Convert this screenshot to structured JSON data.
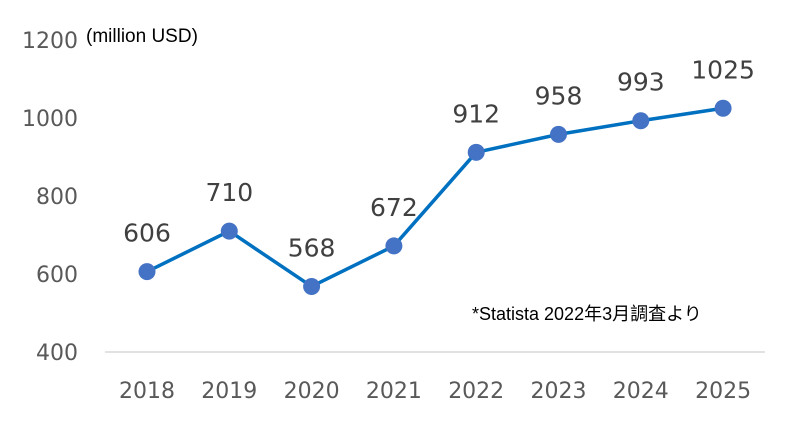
{
  "chart_data": {
    "type": "line",
    "title": "",
    "xlabel": "",
    "ylabel": "",
    "unit_label": "(million USD)",
    "note": "*Statista  2022年3月調査より",
    "categories": [
      "2018",
      "2019",
      "2020",
      "2021",
      "2022",
      "2023",
      "2024",
      "2025"
    ],
    "series": [
      {
        "values": [
          606,
          710,
          568,
          672,
          912,
          958,
          993,
          1025
        ],
        "color": "#0070c0",
        "marker_color": "#4472c4"
      }
    ],
    "ylim": [
      400,
      1200
    ],
    "yticks": [
      400,
      600,
      800,
      1000,
      1200
    ],
    "grid": false,
    "data_labels": true,
    "legend": "none"
  }
}
